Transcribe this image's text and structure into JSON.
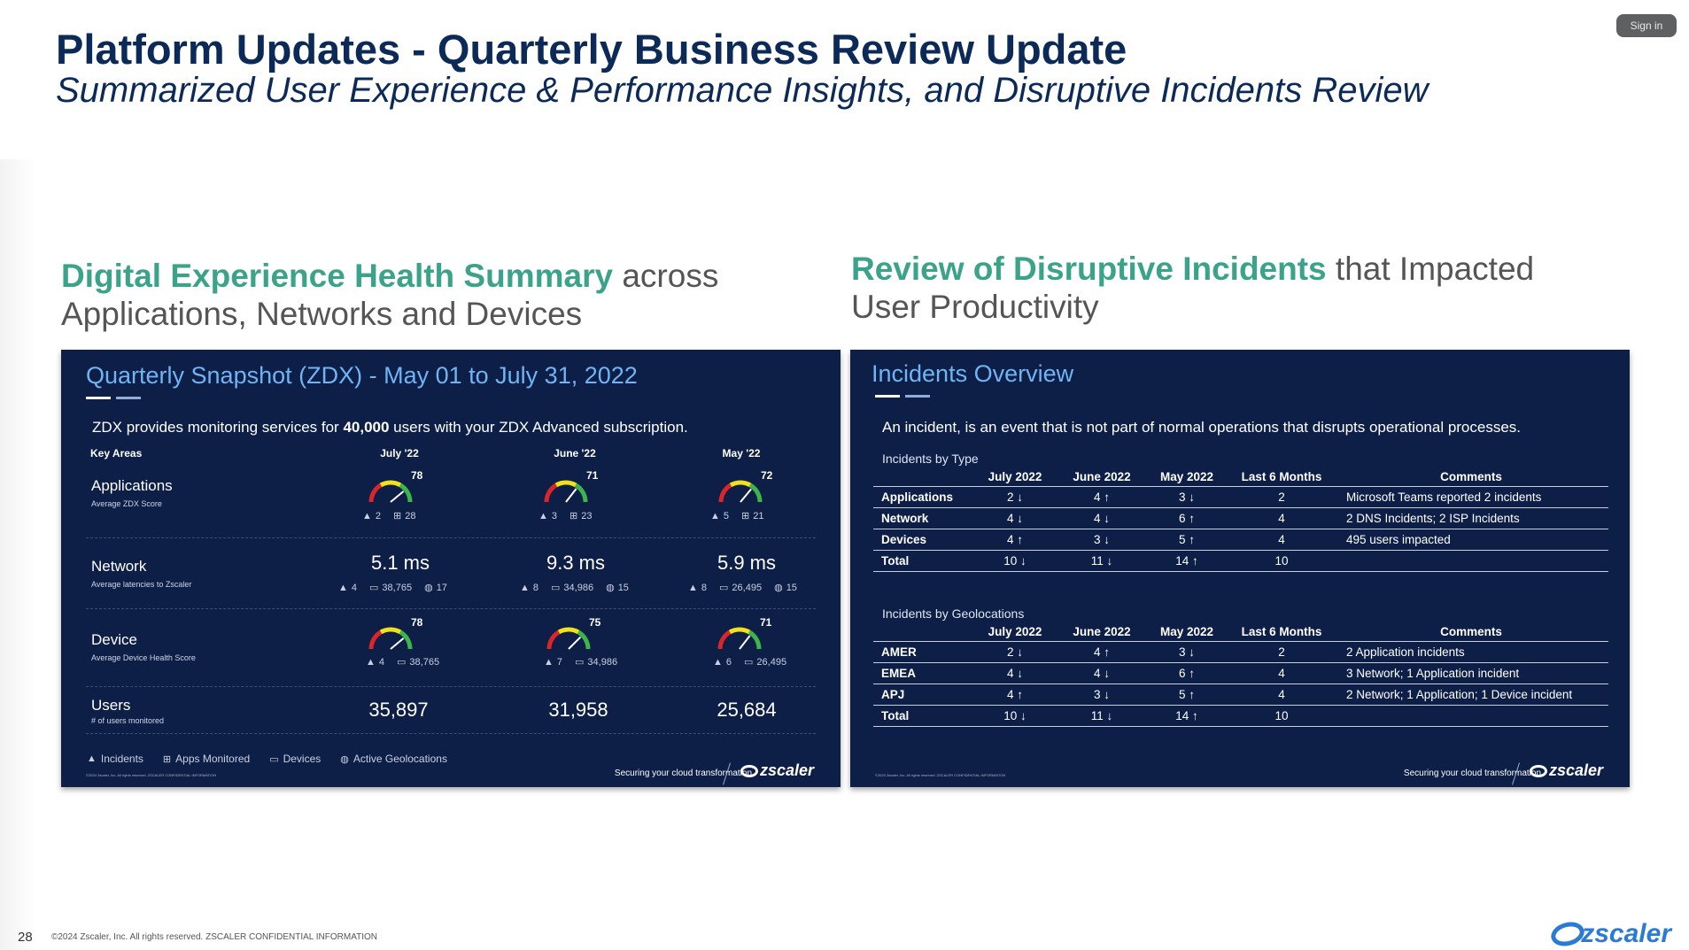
{
  "header": {
    "signin_label": "Sign in",
    "title": "Platform Updates - Quarterly Business Review Update",
    "subtitle": "Summarized User Experience & Performance Insights, and Disruptive Incidents Review"
  },
  "left_section": {
    "heading_accent": "Digital Experience Health Summary",
    "heading_rest": " across Applications, Networks and Devices"
  },
  "right_section": {
    "heading_accent": "Review of Disruptive Incidents",
    "heading_rest": " that Impacted User Productivity"
  },
  "zdx": {
    "title": "Quarterly Snapshot (ZDX) - May 01 to July 31, 2022",
    "intro_pre": "ZDX provides monitoring services for ",
    "intro_users": "40,000",
    "intro_post": " users with your ZDX Advanced subscription.",
    "key_areas": "Key Areas",
    "months": [
      "July '22",
      "June '22",
      "May '22"
    ],
    "applications": {
      "name": "Applications",
      "desc": "Average ZDX Score",
      "cols": [
        {
          "score": "78",
          "score_value": 78,
          "incidents": "2",
          "apps": "28"
        },
        {
          "score": "71",
          "score_value": 71,
          "incidents": "3",
          "apps": "23"
        },
        {
          "score": "72",
          "score_value": 72,
          "incidents": "5",
          "apps": "21"
        }
      ]
    },
    "network": {
      "name": "Network",
      "desc": "Average latencies to Zscaler",
      "cols": [
        {
          "latency": "5.1 ms",
          "incidents": "4",
          "devices": "38,765",
          "geos": "17"
        },
        {
          "latency": "9.3 ms",
          "incidents": "8",
          "devices": "34,986",
          "geos": "15"
        },
        {
          "latency": "5.9 ms",
          "incidents": "8",
          "devices": "26,495",
          "geos": "15"
        }
      ]
    },
    "device": {
      "name": "Device",
      "desc": "Average Device Health Score",
      "cols": [
        {
          "score": "78",
          "score_value": 78,
          "incidents": "4",
          "devices": "38,765"
        },
        {
          "score": "75",
          "score_value": 75,
          "incidents": "7",
          "devices": "34,986"
        },
        {
          "score": "71",
          "score_value": 71,
          "incidents": "6",
          "devices": "26,495"
        }
      ]
    },
    "users": {
      "name": "Users",
      "desc": "# of users monitored",
      "values": [
        "35,897",
        "31,958",
        "25,684"
      ]
    },
    "legend": [
      "Incidents",
      "Apps Monitored",
      "Devices",
      "Active Geolocations"
    ],
    "copyright": "©2020 Zscaler, Inc. All rights reserved. ZSCALER CONFIDENTIAL INFORMATION",
    "tagline": "Securing your cloud transformation",
    "logo": "zscaler"
  },
  "incidents": {
    "title": "Incidents Overview",
    "intro": "An incident, is an event that is not part of normal operations that disrupts operational processes.",
    "by_type": {
      "title": "Incidents by Type",
      "headers": [
        "",
        "July 2022",
        "June 2022",
        "May 2022",
        "Last 6 Months",
        "Comments"
      ],
      "rows": [
        [
          "Applications",
          "2 ↓",
          "4 ↑",
          "3 ↓",
          "2",
          "Microsoft Teams reported 2 incidents"
        ],
        [
          "Network",
          "4 ↓",
          "4 ↓",
          "6 ↑",
          "4",
          "2 DNS Incidents; 2 ISP Incidents"
        ],
        [
          "Devices",
          "4 ↑",
          "3 ↓",
          "5 ↑",
          "4",
          "495 users impacted"
        ],
        [
          "Total",
          "10 ↓",
          "11 ↓",
          "14 ↑",
          "10",
          ""
        ]
      ]
    },
    "by_geo": {
      "title": "Incidents by Geolocations",
      "headers": [
        "",
        "July 2022",
        "June 2022",
        "May 2022",
        "Last 6 Months",
        "Comments"
      ],
      "rows": [
        [
          "AMER",
          "2 ↓",
          "4 ↑",
          "3 ↓",
          "2",
          "2 Application incidents"
        ],
        [
          "EMEA",
          "4 ↓",
          "4 ↓",
          "6 ↑",
          "4",
          "3 Network; 1 Application incident"
        ],
        [
          "APJ",
          "4 ↑",
          "3 ↓",
          "5 ↑",
          "4",
          "2 Network; 1 Application; 1 Device incident"
        ],
        [
          "Total",
          "10 ↓",
          "11 ↓",
          "14 ↑",
          "10",
          ""
        ]
      ]
    },
    "copyright": "©2020 Zscaler, Inc. All rights reserved. ZSCALER CONFIDENTIAL INFORMATION",
    "tagline": "Securing your cloud transformation",
    "logo": "zscaler"
  },
  "footer": {
    "page_number": "28",
    "copyright": "©2024 Zscaler, Inc. All rights reserved. ZSCALER CONFIDENTIAL INFORMATION",
    "logo": "zscaler"
  },
  "colors": {
    "title_navy": "#0c2a57",
    "accent_green": "#3ba38a",
    "panel_bg": "#0d1e47",
    "panel_title_blue": "#6fb4f5",
    "brand_blue": "#2b7bd6"
  }
}
